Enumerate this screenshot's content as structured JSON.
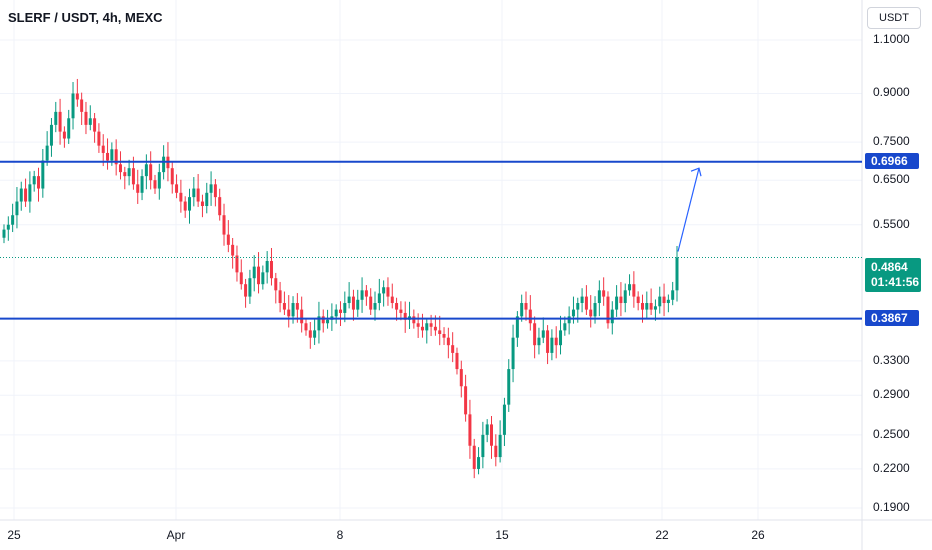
{
  "header": {
    "title": "SLERF / USDT, 4h, MEXC",
    "currency_button": "USDT"
  },
  "colors": {
    "up": "#089981",
    "down": "#f23645",
    "level_line": "#1848cc",
    "arrow": "#2962ff",
    "grid": "#f0f3fa"
  },
  "chart_data": {
    "type": "candlestick",
    "scale": "log",
    "ylim": [
      0.185,
      1.2
    ],
    "y_ticks": [
      "1.1000",
      "0.9000",
      "0.7500",
      "0.6500",
      "0.5500",
      "0.3300",
      "0.2900",
      "0.2500",
      "0.2200",
      "0.1900"
    ],
    "x_ticks": [
      "25",
      "Apr",
      "8",
      "15",
      "22",
      "26"
    ],
    "levels": [
      {
        "label": "0.6966",
        "value": 0.6966
      },
      {
        "label": "0.3867",
        "value": 0.3867
      }
    ],
    "current_price": {
      "label": "0.4864",
      "countdown": "01:41:56",
      "value": 0.4864
    },
    "arrow": {
      "from_value": 0.4864,
      "to_value": 0.68
    },
    "series_close": [
      0.54,
      0.55,
      0.57,
      0.6,
      0.63,
      0.6,
      0.64,
      0.66,
      0.63,
      0.7,
      0.74,
      0.8,
      0.84,
      0.78,
      0.76,
      0.82,
      0.9,
      0.88,
      0.84,
      0.8,
      0.82,
      0.78,
      0.74,
      0.72,
      0.7,
      0.73,
      0.69,
      0.67,
      0.66,
      0.68,
      0.64,
      0.62,
      0.66,
      0.69,
      0.65,
      0.63,
      0.67,
      0.71,
      0.68,
      0.64,
      0.62,
      0.6,
      0.58,
      0.61,
      0.63,
      0.6,
      0.59,
      0.62,
      0.64,
      0.61,
      0.57,
      0.53,
      0.51,
      0.49,
      0.46,
      0.44,
      0.42,
      0.45,
      0.47,
      0.44,
      0.46,
      0.48,
      0.45,
      0.43,
      0.41,
      0.4,
      0.39,
      0.41,
      0.4,
      0.38,
      0.37,
      0.36,
      0.37,
      0.39,
      0.38,
      0.385,
      0.39,
      0.4,
      0.395,
      0.41,
      0.42,
      0.4,
      0.415,
      0.43,
      0.42,
      0.4,
      0.41,
      0.425,
      0.435,
      0.42,
      0.41,
      0.4,
      0.395,
      0.385,
      0.39,
      0.38,
      0.375,
      0.37,
      0.38,
      0.375,
      0.37,
      0.365,
      0.36,
      0.35,
      0.34,
      0.32,
      0.3,
      0.27,
      0.24,
      0.22,
      0.23,
      0.25,
      0.26,
      0.24,
      0.23,
      0.25,
      0.28,
      0.32,
      0.36,
      0.39,
      0.41,
      0.4,
      0.38,
      0.35,
      0.36,
      0.37,
      0.34,
      0.36,
      0.35,
      0.37,
      0.38,
      0.39,
      0.4,
      0.41,
      0.42,
      0.4,
      0.39,
      0.41,
      0.43,
      0.42,
      0.38,
      0.4,
      0.42,
      0.41,
      0.43,
      0.44,
      0.42,
      0.41,
      0.4,
      0.41,
      0.4,
      0.405,
      0.42,
      0.41,
      0.415,
      0.43,
      0.4864
    ]
  }
}
